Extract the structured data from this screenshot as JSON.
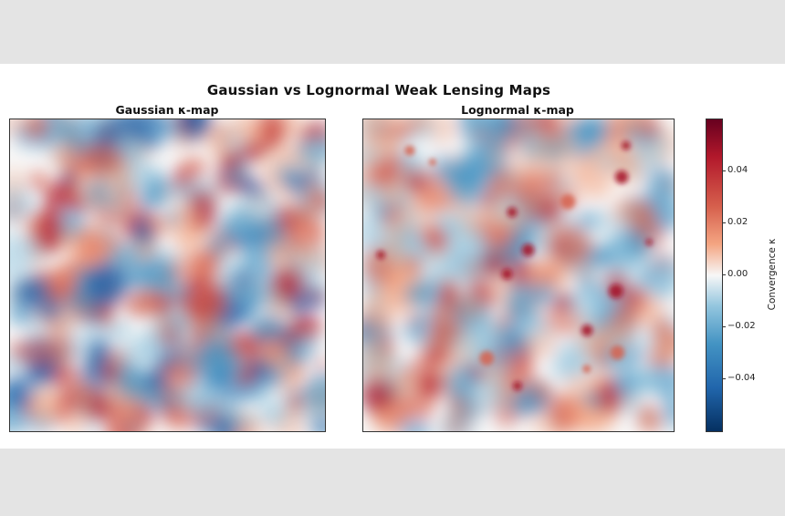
{
  "chart_data": [
    {
      "type": "heatmap",
      "title": "Gaussian κ-map",
      "grid": false,
      "axes_ticks": "hidden",
      "value_range": [
        -0.06,
        0.06
      ],
      "colormap": "RdBu_r",
      "description_values": "random Gaussian convergence field, values mostly within ±0.03"
    },
    {
      "type": "heatmap",
      "title": "Lognormal κ-map",
      "grid": false,
      "axes_ticks": "hidden",
      "value_range": [
        -0.06,
        0.06
      ],
      "colormap": "RdBu_r",
      "description_values": "lognormal convergence field with sparse positive peaks up to ~0.05"
    }
  ],
  "figure": {
    "suptitle": "Gaussian vs Lognormal Weak Lensing Maps"
  },
  "colorbar": {
    "label": "Convergence κ",
    "range": [
      -0.06,
      0.06
    ],
    "ticks": [
      {
        "value": 0.04,
        "label": "0.04"
      },
      {
        "value": 0.02,
        "label": "0.02"
      },
      {
        "value": 0.0,
        "label": "0.00"
      },
      {
        "value": -0.02,
        "label": "−0.02"
      },
      {
        "value": -0.04,
        "label": "−0.04"
      }
    ],
    "colors": {
      "low": "#053061",
      "mid_low": "#4393c3",
      "zero": "#f7f7f7",
      "mid_high": "#d6604d",
      "high": "#67001f"
    }
  }
}
